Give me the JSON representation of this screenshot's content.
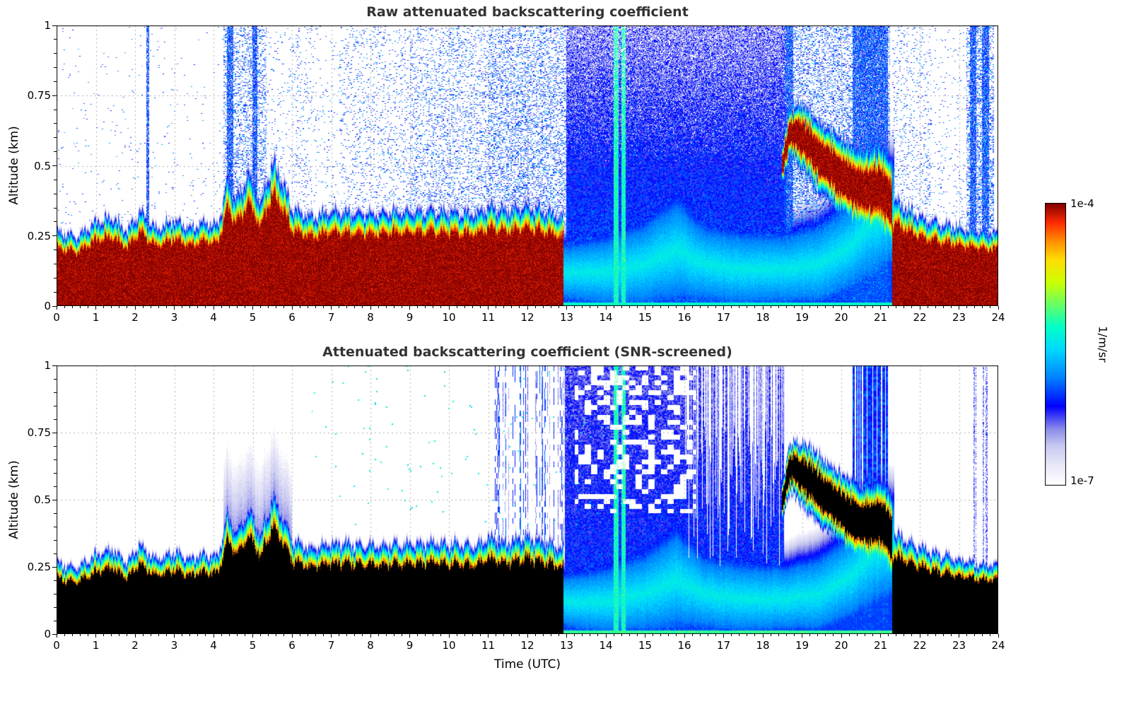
{
  "colorbar": {
    "max_label": "1e-4",
    "min_label": "1e-7",
    "unit_label": "1/m/sr"
  },
  "colormap": [
    [
      0,
      "#ffffff"
    ],
    [
      0.07,
      "#e9e9f9"
    ],
    [
      0.14,
      "#c9c9f1"
    ],
    [
      0.2,
      "#8a8ae9"
    ],
    [
      0.28,
      "#0000ff"
    ],
    [
      0.38,
      "#0080ff"
    ],
    [
      0.48,
      "#00d8ff"
    ],
    [
      0.56,
      "#00ffc8"
    ],
    [
      0.64,
      "#66ff66"
    ],
    [
      0.72,
      "#ccff00"
    ],
    [
      0.8,
      "#ffdd00"
    ],
    [
      0.87,
      "#ff8800"
    ],
    [
      0.93,
      "#ff2a00"
    ],
    [
      1,
      "#800000"
    ]
  ],
  "chart_data": [
    {
      "type": "heatmap",
      "title": "Raw attenuated backscattering coefficient",
      "xlabel": "",
      "ylabel": "Altitude (km)",
      "x_range": [
        0,
        24
      ],
      "y_range": [
        0,
        1
      ],
      "x_ticks": [
        0,
        1,
        2,
        3,
        4,
        5,
        6,
        7,
        8,
        9,
        10,
        11,
        12,
        13,
        14,
        15,
        16,
        17,
        18,
        19,
        20,
        21,
        22,
        23,
        24
      ],
      "y_ticks": [
        0,
        0.25,
        0.5,
        0.75,
        1
      ],
      "value_min": "1e-7",
      "value_max": "1e-4",
      "value_units": "1/m/sr",
      "value_scale": "log",
      "grid": "dotted",
      "features": {
        "surface_layers": [
          {
            "window": [
              0,
              12.92
            ],
            "intensity": 1,
            "top_km": [
              [
                0,
                0.26
              ],
              [
                0.5,
                0.24
              ],
              [
                1,
                0.29
              ],
              [
                1.4,
                0.31
              ],
              [
                1.8,
                0.26
              ],
              [
                2.1,
                0.33
              ],
              [
                2.5,
                0.27
              ],
              [
                3,
                0.3
              ],
              [
                3.4,
                0.27
              ],
              [
                3.8,
                0.29
              ],
              [
                4.1,
                0.28
              ],
              [
                4.35,
                0.44
              ],
              [
                4.6,
                0.37
              ],
              [
                4.9,
                0.46
              ],
              [
                5.2,
                0.36
              ],
              [
                5.5,
                0.5
              ],
              [
                5.75,
                0.44
              ],
              [
                6,
                0.34
              ],
              [
                6.5,
                0.31
              ],
              [
                7,
                0.33
              ],
              [
                8,
                0.32
              ],
              [
                9,
                0.33
              ],
              [
                10,
                0.33
              ],
              [
                10.7,
                0.32
              ],
              [
                11,
                0.35
              ],
              [
                11.5,
                0.33
              ],
              [
                12,
                0.35
              ],
              [
                12.5,
                0.33
              ],
              [
                12.92,
                0.31
              ]
            ]
          },
          {
            "window": [
              21.3,
              24
            ],
            "intensity": 1,
            "top_km": [
              [
                21.3,
                0.37
              ],
              [
                21.8,
                0.33
              ],
              [
                22.2,
                0.3
              ],
              [
                22.8,
                0.28
              ],
              [
                23.4,
                0.26
              ],
              [
                24,
                0.25
              ]
            ]
          }
        ],
        "weak_band": {
          "window": [
            12.92,
            21.35
          ],
          "peak_value": 0.52,
          "center_km": [
            [
              12.92,
              0.12
            ],
            [
              14,
              0.12
            ],
            [
              15,
              0.15
            ],
            [
              15.8,
              0.2
            ],
            [
              16.5,
              0.15
            ],
            [
              17.5,
              0.13
            ],
            [
              18.6,
              0.13
            ],
            [
              19.5,
              0.15
            ],
            [
              20.3,
              0.22
            ],
            [
              20.8,
              0.3
            ],
            [
              21.35,
              0.32
            ]
          ],
          "halfwidth_km": [
            [
              12.92,
              0.08
            ],
            [
              15,
              0.12
            ],
            [
              15.8,
              0.15
            ],
            [
              16.5,
              0.11
            ],
            [
              18.6,
              0.1
            ],
            [
              20.3,
              0.13
            ],
            [
              20.8,
              0.17
            ],
            [
              21.35,
              0.14
            ]
          ]
        },
        "plume": {
          "window": [
            18.5,
            21.3
          ],
          "center_km": [
            [
              18.5,
              0.5
            ],
            [
              18.7,
              0.62
            ],
            [
              19,
              0.6
            ],
            [
              19.4,
              0.54
            ],
            [
              19.8,
              0.49
            ],
            [
              20.2,
              0.44
            ],
            [
              20.6,
              0.41
            ],
            [
              21,
              0.42
            ],
            [
              21.3,
              0.36
            ]
          ],
          "halfwidth_km": [
            [
              18.5,
              0.05
            ],
            [
              19,
              0.09
            ],
            [
              20,
              0.1
            ],
            [
              21.3,
              0.12
            ]
          ]
        },
        "haze": {
          "window": [
            13,
            18.6
          ],
          "base_value": 0.34,
          "altitude_falloff": 0.1
        },
        "noise_windows": [
          [
            0,
            4.25,
            0.01
          ],
          [
            4.25,
            5.35,
            0.3
          ],
          [
            5.35,
            6.1,
            0.05
          ],
          [
            6.1,
            6.5,
            0.09
          ],
          [
            6.5,
            7.2,
            0.04
          ],
          [
            7.2,
            9,
            0.1
          ],
          [
            9,
            11,
            0.2
          ],
          [
            11,
            13,
            0.32
          ],
          [
            18.6,
            21.25,
            0.38
          ],
          [
            21.3,
            22.3,
            0.1
          ],
          [
            22.3,
            23.2,
            0.04
          ],
          [
            23.2,
            23.9,
            0.42
          ]
        ],
        "blue_columns": [
          [
            2.28,
            2.36
          ],
          [
            4.33,
            4.5
          ],
          [
            4.98,
            5.12
          ],
          [
            18.55,
            18.78
          ],
          [
            20.3,
            21.2
          ],
          [
            23.28,
            23.45
          ],
          [
            23.6,
            23.78
          ]
        ],
        "cyan_stripes": [
          [
            14.2,
            14.32
          ],
          [
            14.4,
            14.5
          ]
        ],
        "bottom_line": {
          "window": [
            12.92,
            21.35
          ],
          "value": 0.55
        }
      }
    },
    {
      "type": "heatmap",
      "title": "Attenuated backscattering coefficient (SNR-screened)",
      "xlabel": "Time (UTC)",
      "ylabel": "Altitude (km)",
      "x_range": [
        0,
        24
      ],
      "y_range": [
        0,
        1
      ],
      "x_ticks": [
        0,
        1,
        2,
        3,
        4,
        5,
        6,
        7,
        8,
        9,
        10,
        11,
        12,
        13,
        14,
        15,
        16,
        17,
        18,
        19,
        20,
        21,
        22,
        23,
        24
      ],
      "y_ticks": [
        0,
        0.25,
        0.5,
        0.75,
        1
      ],
      "value_min": "1e-7",
      "value_max": "1e-4",
      "value_units": "1/m/sr",
      "value_scale": "log",
      "grid": "dotted",
      "features": {
        "saturation_black_threshold": 0.92,
        "surface_layers": [
          {
            "window": [
              0,
              12.92
            ],
            "intensity": 1,
            "top_km": [
              [
                0,
                0.26
              ],
              [
                0.5,
                0.24
              ],
              [
                1,
                0.29
              ],
              [
                1.4,
                0.31
              ],
              [
                1.8,
                0.26
              ],
              [
                2.1,
                0.33
              ],
              [
                2.5,
                0.27
              ],
              [
                3,
                0.3
              ],
              [
                3.4,
                0.27
              ],
              [
                3.8,
                0.29
              ],
              [
                4.1,
                0.28
              ],
              [
                4.35,
                0.44
              ],
              [
                4.6,
                0.37
              ],
              [
                4.9,
                0.46
              ],
              [
                5.2,
                0.36
              ],
              [
                5.5,
                0.5
              ],
              [
                5.75,
                0.44
              ],
              [
                6,
                0.34
              ],
              [
                6.5,
                0.31
              ],
              [
                7,
                0.33
              ],
              [
                8,
                0.32
              ],
              [
                9,
                0.33
              ],
              [
                10,
                0.33
              ],
              [
                10.7,
                0.32
              ],
              [
                11,
                0.35
              ],
              [
                11.5,
                0.33
              ],
              [
                12,
                0.35
              ],
              [
                12.5,
                0.33
              ],
              [
                12.92,
                0.31
              ]
            ]
          },
          {
            "window": [
              21.3,
              24
            ],
            "intensity": 1,
            "top_km": [
              [
                21.3,
                0.37
              ],
              [
                21.8,
                0.33
              ],
              [
                22.2,
                0.3
              ],
              [
                22.8,
                0.28
              ],
              [
                23.4,
                0.26
              ],
              [
                24,
                0.25
              ]
            ]
          }
        ],
        "weak_band": {
          "window": [
            12.92,
            21.35
          ],
          "peak_value": 0.52,
          "center_km": [
            [
              12.92,
              0.12
            ],
            [
              14,
              0.12
            ],
            [
              15,
              0.15
            ],
            [
              15.8,
              0.2
            ],
            [
              16.5,
              0.15
            ],
            [
              17.5,
              0.13
            ],
            [
              18.6,
              0.13
            ],
            [
              19.5,
              0.15
            ],
            [
              20.3,
              0.22
            ],
            [
              20.8,
              0.3
            ],
            [
              21.35,
              0.32
            ]
          ],
          "halfwidth_km": [
            [
              12.92,
              0.08
            ],
            [
              15,
              0.12
            ],
            [
              15.8,
              0.15
            ],
            [
              16.5,
              0.11
            ],
            [
              18.6,
              0.1
            ],
            [
              20.3,
              0.13
            ],
            [
              20.8,
              0.17
            ],
            [
              21.35,
              0.14
            ]
          ]
        },
        "plume": {
          "window": [
            18.5,
            21.3
          ],
          "center_km": [
            [
              18.5,
              0.5
            ],
            [
              18.7,
              0.62
            ],
            [
              19,
              0.6
            ],
            [
              19.4,
              0.54
            ],
            [
              19.8,
              0.49
            ],
            [
              20.2,
              0.44
            ],
            [
              20.6,
              0.41
            ],
            [
              21,
              0.42
            ],
            [
              21.3,
              0.36
            ]
          ],
          "halfwidth_km": [
            [
              18.5,
              0.05
            ],
            [
              19,
              0.09
            ],
            [
              20,
              0.1
            ],
            [
              21.3,
              0.12
            ]
          ]
        },
        "haze": {
          "window": [
            12.95,
            18.55
          ],
          "base_value": 0.33,
          "altitude_falloff": 0.1
        },
        "halo": {
          "window": [
            4.25,
            6
          ],
          "depth_km": 0.25,
          "value": 0.17
        },
        "white_stripes": {
          "window": [
            16,
            18.55
          ],
          "probability": 0.5
        },
        "noise_holes": {
          "window": [
            13.2,
            16.3
          ],
          "min_alt_km": 0.45
        },
        "patchy_columns": {
          "window": [
            11,
            13
          ],
          "probability": 0.35,
          "min_alt_km": 0.3
        },
        "sparse_dots": {
          "window": [
            6.5,
            14.5
          ],
          "density": 0.004,
          "min_alt_km": 0.4
        },
        "blue_column_bands": [
          [
            20.3,
            21.2
          ]
        ],
        "faint_columns": [
          [
            23.3,
            23.45
          ],
          [
            23.6,
            23.78
          ]
        ],
        "cyan_stripes": [
          [
            14.2,
            14.32
          ],
          [
            14.4,
            14.5
          ]
        ],
        "bottom_line": {
          "window": [
            12.92,
            21.35
          ],
          "value": 0.6
        }
      }
    }
  ]
}
